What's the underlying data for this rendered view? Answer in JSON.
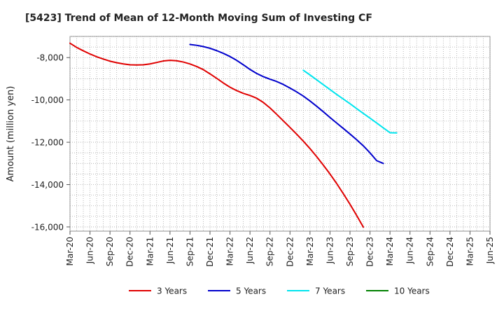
{
  "chart_data": {
    "type": "line",
    "title": "[5423]  Trend of Mean of 12-Month Moving Sum of Investing CF",
    "xlabel": "",
    "ylabel": "Amount (million yen)",
    "ylim": [
      -16200,
      -7000
    ],
    "yticks": [
      -8000,
      -10000,
      -12000,
      -14000,
      -16000
    ],
    "ytick_labels": [
      "-8,000",
      "-10,000",
      "-12,000",
      "-14,000",
      "-16,000"
    ],
    "x_tick_labels": [
      "Mar-20",
      "Jun-20",
      "Sep-20",
      "Dec-20",
      "Mar-21",
      "Jun-21",
      "Sep-21",
      "Dec-21",
      "Mar-22",
      "Jun-22",
      "Sep-22",
      "Dec-22",
      "Mar-23",
      "Jun-23",
      "Sep-23",
      "Dec-23",
      "Mar-24",
      "Jun-24",
      "Sep-24",
      "Dec-24",
      "Mar-25",
      "Jun-25"
    ],
    "grid": true,
    "legend": "bottom",
    "series": [
      {
        "name": "3 Years",
        "color": "#e00000",
        "values": [
          [
            0,
            -7320
          ],
          [
            1,
            -7520
          ],
          [
            2,
            -7680
          ],
          [
            3,
            -7830
          ],
          [
            4,
            -7960
          ],
          [
            5,
            -8070
          ],
          [
            6,
            -8170
          ],
          [
            7,
            -8240
          ],
          [
            8,
            -8300
          ],
          [
            9,
            -8340
          ],
          [
            10,
            -8350
          ],
          [
            11,
            -8340
          ],
          [
            12,
            -8300
          ],
          [
            13,
            -8230
          ],
          [
            14,
            -8160
          ],
          [
            15,
            -8130
          ],
          [
            16,
            -8150
          ],
          [
            17,
            -8210
          ],
          [
            18,
            -8300
          ],
          [
            19,
            -8420
          ],
          [
            20,
            -8570
          ],
          [
            21,
            -8770
          ],
          [
            22,
            -8980
          ],
          [
            23,
            -9200
          ],
          [
            24,
            -9400
          ],
          [
            25,
            -9560
          ],
          [
            26,
            -9690
          ],
          [
            27,
            -9790
          ],
          [
            28,
            -9920
          ],
          [
            29,
            -10120
          ],
          [
            30,
            -10380
          ],
          [
            31,
            -10680
          ],
          [
            32,
            -10990
          ],
          [
            33,
            -11300
          ],
          [
            34,
            -11620
          ],
          [
            35,
            -11950
          ],
          [
            36,
            -12300
          ],
          [
            37,
            -12680
          ],
          [
            38,
            -13080
          ],
          [
            39,
            -13500
          ],
          [
            40,
            -13950
          ],
          [
            41,
            -14430
          ],
          [
            42,
            -14930
          ],
          [
            43,
            -15460
          ],
          [
            44,
            -16010
          ]
        ]
      },
      {
        "name": "5 Years",
        "color": "#0000cc",
        "values": [
          [
            18,
            -7380
          ],
          [
            19,
            -7420
          ],
          [
            20,
            -7480
          ],
          [
            21,
            -7560
          ],
          [
            22,
            -7670
          ],
          [
            23,
            -7800
          ],
          [
            24,
            -7950
          ],
          [
            25,
            -8130
          ],
          [
            26,
            -8340
          ],
          [
            27,
            -8560
          ],
          [
            28,
            -8750
          ],
          [
            29,
            -8900
          ],
          [
            30,
            -9020
          ],
          [
            31,
            -9130
          ],
          [
            32,
            -9270
          ],
          [
            33,
            -9440
          ],
          [
            34,
            -9620
          ],
          [
            35,
            -9820
          ],
          [
            36,
            -10050
          ],
          [
            37,
            -10300
          ],
          [
            38,
            -10560
          ],
          [
            39,
            -10830
          ],
          [
            40,
            -11090
          ],
          [
            41,
            -11350
          ],
          [
            42,
            -11610
          ],
          [
            43,
            -11880
          ],
          [
            44,
            -12170
          ],
          [
            45,
            -12500
          ],
          [
            46,
            -12870
          ],
          [
            47,
            -13000
          ]
        ]
      },
      {
        "name": "7 Years",
        "color": "#00e5ee",
        "values": [
          [
            35,
            -8600
          ],
          [
            36,
            -8820
          ],
          [
            37,
            -9050
          ],
          [
            38,
            -9280
          ],
          [
            39,
            -9510
          ],
          [
            40,
            -9740
          ],
          [
            41,
            -9960
          ],
          [
            42,
            -10180
          ],
          [
            43,
            -10410
          ],
          [
            44,
            -10640
          ],
          [
            45,
            -10860
          ],
          [
            46,
            -11090
          ],
          [
            47,
            -11320
          ],
          [
            48,
            -11550
          ],
          [
            49,
            -11560
          ]
        ]
      },
      {
        "name": "10 Years",
        "color": "#008000",
        "values": []
      }
    ]
  }
}
